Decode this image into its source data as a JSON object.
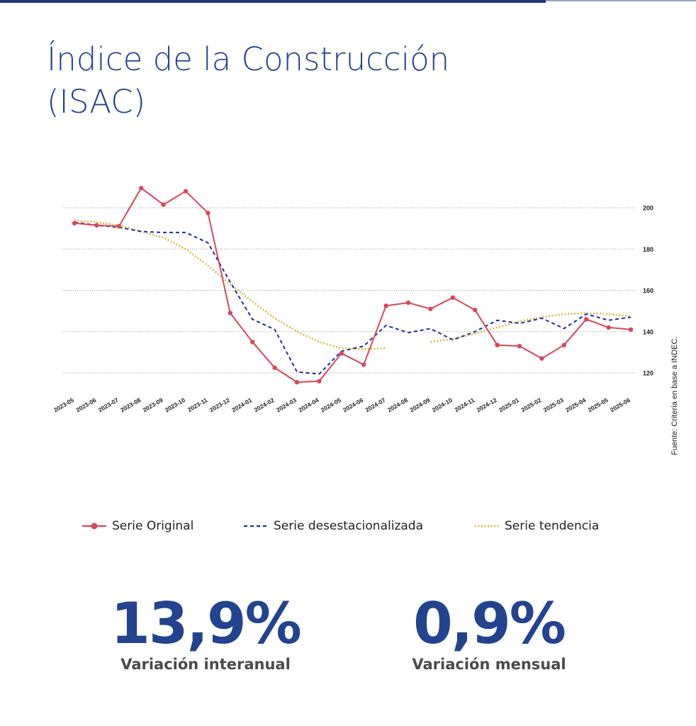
{
  "title_line1": "Índice de la Construcción",
  "title_line2": "(ISAC)",
  "source": "Fuente: Criteria en base a INDEC.",
  "kpis": {
    "annual": {
      "value": "13,9%",
      "label": "Variación interanual"
    },
    "monthly": {
      "value": "0,9%",
      "label": "Variación mensual"
    }
  },
  "colors": {
    "brand": "#23438f",
    "original": "#d9465a",
    "desest": "#1f2f99",
    "trend": "#d8b634",
    "kpi_label": "#4a4a4a"
  },
  "chart_data": {
    "type": "line",
    "categories": [
      "2023-05",
      "2023-06",
      "2023-07",
      "2023-08",
      "2023-09",
      "2023-10",
      "2023-11",
      "2023-12",
      "2024-01",
      "2024-02",
      "2024-03",
      "2024-04",
      "2024-05",
      "2024-06",
      "2024-07",
      "2024-08",
      "2024-09",
      "2024-10",
      "2024-11",
      "2024-12",
      "2025-01",
      "2025-02",
      "2025-03",
      "2025-04",
      "2025-05",
      "2025-06"
    ],
    "yticks": [
      120,
      140,
      160,
      180,
      200
    ],
    "ylim": [
      110,
      215
    ],
    "y_axis_position": "right",
    "grid": true,
    "legend_position": "bottom",
    "series": [
      {
        "name": "Serie Original",
        "style": "solid-markers",
        "color": "#d9465a",
        "values": [
          192.5,
          191.5,
          191,
          209.5,
          201.5,
          208,
          197.5,
          149,
          135,
          122.5,
          115.5,
          116,
          129.5,
          124,
          152.5,
          154,
          151,
          156.5,
          150.5,
          133.5,
          133,
          127,
          133.5,
          146,
          142,
          141
        ]
      },
      {
        "name": "Serie desestacionalizada",
        "style": "dashed",
        "color": "#1f2f99",
        "values": [
          193,
          191.5,
          190.5,
          188.5,
          188,
          188,
          183,
          164,
          146,
          141,
          120.5,
          119.5,
          130.5,
          133,
          143,
          139.5,
          141.5,
          136,
          140,
          145.5,
          144,
          146.5,
          141.5,
          148.5,
          145.5,
          147
        ]
      },
      {
        "name": "Serie tendencia",
        "style": "dotted",
        "color": "#d8b634",
        "values": [
          194,
          193,
          191.5,
          188.5,
          185.5,
          180,
          172,
          163,
          154.5,
          146.5,
          140,
          135,
          132,
          131.5,
          132,
          null,
          135,
          136.5,
          139,
          142,
          145,
          147,
          148.5,
          149,
          148.5,
          147.5
        ]
      }
    ]
  }
}
